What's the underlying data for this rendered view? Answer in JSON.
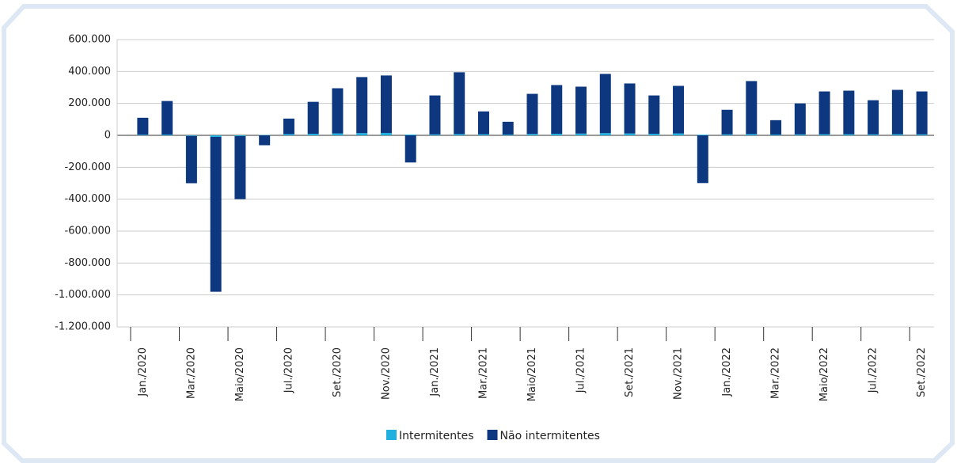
{
  "chart_data": {
    "type": "stacked_bar",
    "categories": [
      "Jan./2020",
      null,
      "Mar./2020",
      null,
      "Maio/2020",
      null,
      "Jul./2020",
      null,
      "Set./2020",
      null,
      "Nov./2020",
      null,
      "Jan./2021",
      null,
      "Mar./2021",
      null,
      "Maio/2021",
      null,
      "Jul./2021",
      null,
      "Set./2021",
      null,
      "Nov./2021",
      null,
      "Jan./2022",
      null,
      "Mar./2022",
      null,
      "Maio/2022",
      null,
      "Jul./2022",
      null,
      "Set./2022"
    ],
    "series": [
      {
        "name": "Intermitentes",
        "color": "#1fb0e0",
        "values": [
          4000,
          5000,
          -4000,
          -10000,
          -5000,
          2000,
          8000,
          10000,
          12000,
          14000,
          15000,
          5000,
          6000,
          8000,
          7000,
          5000,
          9000,
          10000,
          11000,
          14000,
          12000,
          10000,
          12000,
          4000,
          6000,
          8000,
          5000,
          6000,
          7000,
          7000,
          6000,
          7000,
          6000
        ]
      },
      {
        "name": "Não intermitentes",
        "color": "#0d3880",
        "values": [
          106000,
          210000,
          -296000,
          -970000,
          -395000,
          -62000,
          97000,
          200000,
          283000,
          351000,
          360000,
          -170000,
          244000,
          387000,
          143000,
          80000,
          251000,
          305000,
          294000,
          371000,
          313000,
          240000,
          298000,
          -299000,
          154000,
          332000,
          90000,
          194000,
          268000,
          273000,
          214000,
          278000,
          269000
        ]
      }
    ],
    "ylim": [
      -1200000,
      600000
    ],
    "yticks": [
      {
        "value": -1200000,
        "label": "-1.200.000"
      },
      {
        "value": -1000000,
        "label": "-1.000.000"
      },
      {
        "value": -800000,
        "label": "-800.000"
      },
      {
        "value": -600000,
        "label": "-600.000"
      },
      {
        "value": -400000,
        "label": "-400.000"
      },
      {
        "value": -200000,
        "label": "-200.000"
      },
      0,
      {
        "value": 200000,
        "label": "200.000"
      },
      {
        "value": 400000,
        "label": "400.000"
      },
      {
        "value": 600000,
        "label": "600.000"
      }
    ],
    "grid": true,
    "legend": "bottom"
  }
}
